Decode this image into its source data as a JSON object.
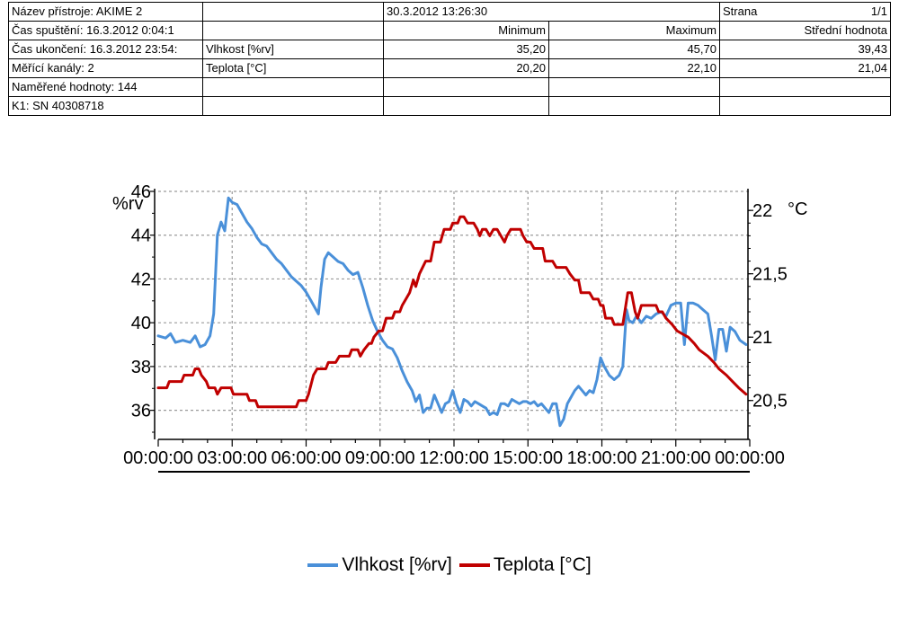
{
  "header": {
    "device_name": "Název přístroje: AKIME 2",
    "printed": "30.3.2012 13:26:30",
    "page_label": "Strana",
    "page_value": "1/1",
    "start_time": "Čas spuštění: 16.3.2012 0:04:1",
    "col_min": "Minimum",
    "col_max": "Maximum",
    "col_mean": "Střední hodnota",
    "end_time": "Čas ukončení: 16.3.2012 23:54:",
    "row1_name": "Vlhkost [%rv]",
    "row1_min": "35,20",
    "row1_max": "45,70",
    "row1_mean": "39,43",
    "channels": "Měřící kanály: 2",
    "row2_name": "Teplota [°C]",
    "row2_min": "20,20",
    "row2_max": "22,10",
    "row2_mean": "21,04",
    "measured": "Naměřené hodnoty: 144",
    "k1": "K1: SN 40308718"
  },
  "chart_data": {
    "type": "line",
    "left_unit": "%rv",
    "right_unit": "°C",
    "x_ticks": [
      "00:00:00",
      "03:00:00",
      "06:00:00",
      "09:00:00",
      "12:00:00",
      "15:00:00",
      "18:00:00",
      "21:00:00",
      "00:00:00"
    ],
    "y_left_ticks": [
      "46",
      "44",
      "42",
      "40",
      "38",
      "36"
    ],
    "y_left_range": [
      35,
      46
    ],
    "y_right_ticks": [
      "22",
      "21,5",
      "21",
      "20,5"
    ],
    "y_right_range": [
      20.25,
      22.15
    ],
    "grid": true,
    "legend_position": "bottom",
    "series": [
      {
        "name": "Vlhkost [%rv]",
        "axis": "left",
        "color": "#4a90d9",
        "points": [
          [
            0,
            39.4
          ],
          [
            0.3,
            39.3
          ],
          [
            0.5,
            39.5
          ],
          [
            0.7,
            39.1
          ],
          [
            1.0,
            39.2
          ],
          [
            1.3,
            39.1
          ],
          [
            1.5,
            39.4
          ],
          [
            1.7,
            38.9
          ],
          [
            1.9,
            39.0
          ],
          [
            2.1,
            39.4
          ],
          [
            2.25,
            40.4
          ],
          [
            2.4,
            44.0
          ],
          [
            2.55,
            44.6
          ],
          [
            2.7,
            44.2
          ],
          [
            2.85,
            45.7
          ],
          [
            3.0,
            45.5
          ],
          [
            3.2,
            45.4
          ],
          [
            3.4,
            45.0
          ],
          [
            3.6,
            44.6
          ],
          [
            3.8,
            44.3
          ],
          [
            4.0,
            43.9
          ],
          [
            4.2,
            43.6
          ],
          [
            4.4,
            43.5
          ],
          [
            4.6,
            43.2
          ],
          [
            4.8,
            42.9
          ],
          [
            5.0,
            42.7
          ],
          [
            5.2,
            42.4
          ],
          [
            5.4,
            42.1
          ],
          [
            5.6,
            41.9
          ],
          [
            5.8,
            41.7
          ],
          [
            6.0,
            41.4
          ],
          [
            6.2,
            41.0
          ],
          [
            6.4,
            40.6
          ],
          [
            6.5,
            40.4
          ],
          [
            6.6,
            41.6
          ],
          [
            6.75,
            42.9
          ],
          [
            6.9,
            43.2
          ],
          [
            7.1,
            43.0
          ],
          [
            7.3,
            42.8
          ],
          [
            7.5,
            42.7
          ],
          [
            7.7,
            42.4
          ],
          [
            7.9,
            42.2
          ],
          [
            8.1,
            42.3
          ],
          [
            8.3,
            41.6
          ],
          [
            8.5,
            40.8
          ],
          [
            8.7,
            40.1
          ],
          [
            8.9,
            39.6
          ],
          [
            9.1,
            39.2
          ],
          [
            9.3,
            38.9
          ],
          [
            9.5,
            38.8
          ],
          [
            9.7,
            38.4
          ],
          [
            9.9,
            37.8
          ],
          [
            10.1,
            37.3
          ],
          [
            10.3,
            36.9
          ],
          [
            10.45,
            36.4
          ],
          [
            10.6,
            36.7
          ],
          [
            10.75,
            35.9
          ],
          [
            10.9,
            36.1
          ],
          [
            11.05,
            36.1
          ],
          [
            11.2,
            36.7
          ],
          [
            11.35,
            36.3
          ],
          [
            11.5,
            35.9
          ],
          [
            11.65,
            36.3
          ],
          [
            11.8,
            36.4
          ],
          [
            11.95,
            36.9
          ],
          [
            12.1,
            36.3
          ],
          [
            12.25,
            35.9
          ],
          [
            12.4,
            36.5
          ],
          [
            12.55,
            36.4
          ],
          [
            12.7,
            36.2
          ],
          [
            12.85,
            36.4
          ],
          [
            13.0,
            36.3
          ],
          [
            13.15,
            36.2
          ],
          [
            13.3,
            36.1
          ],
          [
            13.45,
            35.8
          ],
          [
            13.6,
            35.9
          ],
          [
            13.75,
            35.8
          ],
          [
            13.9,
            36.3
          ],
          [
            14.05,
            36.3
          ],
          [
            14.2,
            36.2
          ],
          [
            14.35,
            36.5
          ],
          [
            14.5,
            36.4
          ],
          [
            14.65,
            36.3
          ],
          [
            14.8,
            36.4
          ],
          [
            14.95,
            36.4
          ],
          [
            15.1,
            36.3
          ],
          [
            15.25,
            36.4
          ],
          [
            15.4,
            36.2
          ],
          [
            15.55,
            36.3
          ],
          [
            15.7,
            36.1
          ],
          [
            15.85,
            35.9
          ],
          [
            16.0,
            36.3
          ],
          [
            16.15,
            36.3
          ],
          [
            16.3,
            35.3
          ],
          [
            16.45,
            35.6
          ],
          [
            16.6,
            36.3
          ],
          [
            16.75,
            36.6
          ],
          [
            16.9,
            36.9
          ],
          [
            17.05,
            37.1
          ],
          [
            17.2,
            36.9
          ],
          [
            17.35,
            36.7
          ],
          [
            17.5,
            36.9
          ],
          [
            17.65,
            36.8
          ],
          [
            17.8,
            37.4
          ],
          [
            17.95,
            38.4
          ],
          [
            18.1,
            38.0
          ],
          [
            18.3,
            37.6
          ],
          [
            18.5,
            37.4
          ],
          [
            18.7,
            37.6
          ],
          [
            18.85,
            38.0
          ],
          [
            19.0,
            40.6
          ],
          [
            19.1,
            40.1
          ],
          [
            19.25,
            40.0
          ],
          [
            19.4,
            40.3
          ],
          [
            19.6,
            40.0
          ],
          [
            19.8,
            40.3
          ],
          [
            20.0,
            40.2
          ],
          [
            20.2,
            40.4
          ],
          [
            20.4,
            40.5
          ],
          [
            20.6,
            40.3
          ],
          [
            20.8,
            40.8
          ],
          [
            21.0,
            40.9
          ],
          [
            21.2,
            40.9
          ],
          [
            21.35,
            39.0
          ],
          [
            21.5,
            40.9
          ],
          [
            21.7,
            40.9
          ],
          [
            21.9,
            40.8
          ],
          [
            22.1,
            40.6
          ],
          [
            22.3,
            40.4
          ],
          [
            22.45,
            39.4
          ],
          [
            22.6,
            38.3
          ],
          [
            22.75,
            39.7
          ],
          [
            22.9,
            39.7
          ],
          [
            23.05,
            38.7
          ],
          [
            23.2,
            39.8
          ],
          [
            23.4,
            39.6
          ],
          [
            23.6,
            39.2
          ],
          [
            23.85,
            39.0
          ]
        ]
      },
      {
        "name": "Teplota [°C]",
        "axis": "right",
        "color": "#c00000",
        "points": [
          [
            0,
            20.6
          ],
          [
            0.35,
            20.6
          ],
          [
            0.45,
            20.65
          ],
          [
            0.95,
            20.65
          ],
          [
            1.05,
            20.7
          ],
          [
            1.4,
            20.7
          ],
          [
            1.5,
            20.75
          ],
          [
            1.65,
            20.75
          ],
          [
            1.75,
            20.7
          ],
          [
            1.95,
            20.65
          ],
          [
            2.05,
            20.6
          ],
          [
            2.3,
            20.6
          ],
          [
            2.4,
            20.55
          ],
          [
            2.55,
            20.6
          ],
          [
            2.95,
            20.6
          ],
          [
            3.05,
            20.55
          ],
          [
            3.6,
            20.55
          ],
          [
            3.7,
            20.5
          ],
          [
            3.95,
            20.5
          ],
          [
            4.05,
            20.45
          ],
          [
            5.6,
            20.45
          ],
          [
            5.7,
            20.5
          ],
          [
            6.0,
            20.5
          ],
          [
            6.1,
            20.55
          ],
          [
            6.3,
            20.7
          ],
          [
            6.45,
            20.75
          ],
          [
            6.8,
            20.75
          ],
          [
            6.9,
            20.8
          ],
          [
            7.2,
            20.8
          ],
          [
            7.35,
            20.85
          ],
          [
            7.75,
            20.85
          ],
          [
            7.85,
            20.9
          ],
          [
            8.1,
            20.9
          ],
          [
            8.2,
            20.85
          ],
          [
            8.35,
            20.9
          ],
          [
            8.55,
            20.95
          ],
          [
            8.65,
            20.95
          ],
          [
            8.75,
            21.0
          ],
          [
            8.95,
            21.05
          ],
          [
            9.1,
            21.05
          ],
          [
            9.25,
            21.15
          ],
          [
            9.5,
            21.15
          ],
          [
            9.6,
            21.2
          ],
          [
            9.8,
            21.2
          ],
          [
            9.9,
            21.25
          ],
          [
            10.05,
            21.3
          ],
          [
            10.2,
            21.35
          ],
          [
            10.35,
            21.45
          ],
          [
            10.45,
            21.4
          ],
          [
            10.6,
            21.5
          ],
          [
            10.85,
            21.6
          ],
          [
            11.05,
            21.6
          ],
          [
            11.2,
            21.75
          ],
          [
            11.45,
            21.75
          ],
          [
            11.6,
            21.85
          ],
          [
            11.85,
            21.85
          ],
          [
            11.95,
            21.9
          ],
          [
            12.15,
            21.9
          ],
          [
            12.25,
            21.95
          ],
          [
            12.4,
            21.95
          ],
          [
            12.55,
            21.9
          ],
          [
            12.8,
            21.9
          ],
          [
            12.95,
            21.85
          ],
          [
            13.05,
            21.8
          ],
          [
            13.15,
            21.85
          ],
          [
            13.3,
            21.85
          ],
          [
            13.45,
            21.8
          ],
          [
            13.6,
            21.85
          ],
          [
            13.75,
            21.85
          ],
          [
            13.9,
            21.8
          ],
          [
            14.05,
            21.75
          ],
          [
            14.15,
            21.8
          ],
          [
            14.3,
            21.85
          ],
          [
            14.7,
            21.85
          ],
          [
            14.8,
            21.8
          ],
          [
            14.95,
            21.75
          ],
          [
            15.1,
            21.75
          ],
          [
            15.25,
            21.7
          ],
          [
            15.6,
            21.7
          ],
          [
            15.7,
            21.6
          ],
          [
            16.0,
            21.6
          ],
          [
            16.15,
            21.55
          ],
          [
            16.55,
            21.55
          ],
          [
            16.7,
            21.5
          ],
          [
            16.9,
            21.45
          ],
          [
            17.05,
            21.45
          ],
          [
            17.15,
            21.35
          ],
          [
            17.5,
            21.35
          ],
          [
            17.65,
            21.3
          ],
          [
            17.85,
            21.3
          ],
          [
            17.95,
            21.25
          ],
          [
            18.05,
            21.25
          ],
          [
            18.15,
            21.15
          ],
          [
            18.4,
            21.15
          ],
          [
            18.5,
            21.1
          ],
          [
            18.85,
            21.1
          ],
          [
            19.05,
            21.35
          ],
          [
            19.2,
            21.35
          ],
          [
            19.35,
            21.2
          ],
          [
            19.45,
            21.15
          ],
          [
            19.6,
            21.25
          ],
          [
            20.2,
            21.25
          ],
          [
            20.3,
            21.2
          ],
          [
            20.45,
            21.2
          ],
          [
            20.6,
            21.15
          ],
          [
            20.85,
            21.1
          ],
          [
            21.05,
            21.05
          ],
          [
            21.5,
            21.0
          ],
          [
            21.75,
            20.95
          ],
          [
            21.95,
            20.9
          ],
          [
            22.3,
            20.85
          ],
          [
            22.55,
            20.8
          ],
          [
            22.75,
            20.75
          ],
          [
            23.05,
            20.7
          ],
          [
            23.3,
            20.65
          ],
          [
            23.55,
            20.6
          ],
          [
            23.85,
            20.55
          ]
        ]
      }
    ]
  },
  "legend": {
    "s1_label": "Vlhkost [%rv]",
    "s2_label": "Teplota [°C]"
  }
}
